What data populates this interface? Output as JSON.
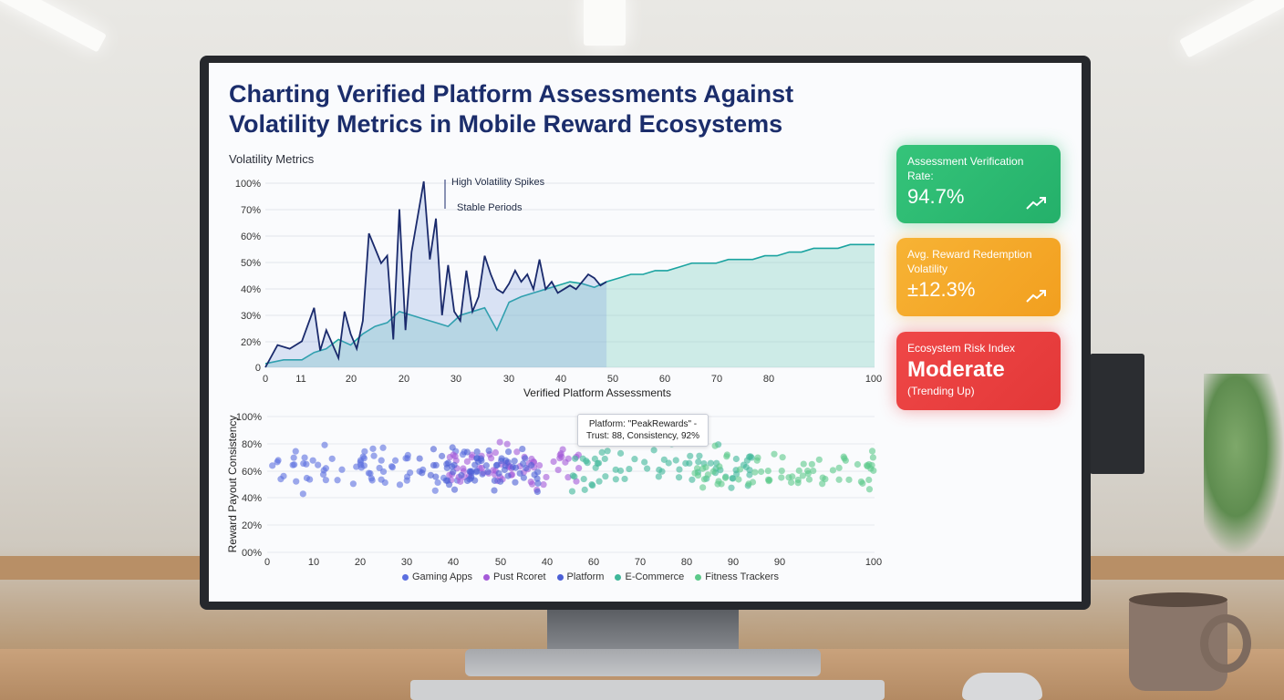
{
  "page": {
    "title": "Charting Verified Platform Assessments Against Volatility Metrics in Mobile Reward Ecosystems"
  },
  "kpis": {
    "verification": {
      "label": "Assessment Verification Rate:",
      "value": "94.7%",
      "icon": "trend-up-icon"
    },
    "redemption": {
      "label": "Avg. Reward Redemption Volatility",
      "value": "±12.3%",
      "icon": "trend-up-icon"
    },
    "risk": {
      "label": "Ecosystem Risk Index",
      "value": "Moderate",
      "sub": "(Trending Up)"
    }
  },
  "colors": {
    "title": "#1b2d6b",
    "spike_line": "#1a2a6c",
    "stable_line": "#1aa3a0",
    "green_card": "#2dbb73",
    "orange_card": "#f4a82a",
    "red_card": "#e84040"
  },
  "tooltip": {
    "line1": "Platform: \"PeakRewards\" -",
    "line2": "Trust: 88, Consistency, 92%"
  },
  "chart_data": [
    {
      "type": "line",
      "title": "Volatility Metrics",
      "xlabel": "Verified Platform Assessments",
      "ylabel": "",
      "x_tick_labels": [
        "0",
        "11",
        "20",
        "20",
        "30",
        "30",
        "40",
        "50",
        "60",
        "70",
        "80",
        "100"
      ],
      "y_tick_labels": [
        "0",
        "20%",
        "30%",
        "40%",
        "50%",
        "60%",
        "70%",
        "100%"
      ],
      "xlim": [
        0,
        100
      ],
      "ylim": [
        0,
        100
      ],
      "annotations": [
        "High Volatility Spikes",
        "Stable Periods"
      ],
      "series": [
        {
          "name": "High Volatility Spikes",
          "x": [
            0,
            2,
            4,
            6,
            8,
            9,
            10,
            12,
            13,
            14,
            15,
            16,
            17,
            19,
            20,
            21,
            22,
            23,
            24,
            26,
            27,
            28,
            29,
            30,
            31,
            32,
            33,
            34,
            35,
            36,
            37,
            38,
            39,
            40,
            41,
            42,
            43,
            44,
            45,
            46,
            47,
            48,
            49,
            50,
            51,
            52,
            53,
            54,
            55,
            56
          ],
          "y": [
            0,
            12,
            10,
            14,
            32,
            9,
            20,
            5,
            30,
            18,
            10,
            25,
            72,
            56,
            60,
            15,
            85,
            20,
            62,
            100,
            58,
            80,
            28,
            55,
            30,
            25,
            52,
            30,
            38,
            60,
            50,
            42,
            40,
            45,
            52,
            46,
            50,
            42,
            58,
            42,
            46,
            40,
            42,
            44,
            42,
            46,
            50,
            48,
            44,
            46
          ]
        },
        {
          "name": "Stable Periods",
          "x": [
            0,
            3,
            6,
            8,
            10,
            12,
            14,
            16,
            18,
            20,
            22,
            24,
            26,
            28,
            30,
            32,
            34,
            36,
            38,
            40,
            42,
            44,
            46,
            48,
            50,
            52,
            54,
            56,
            58,
            60,
            62,
            64,
            66,
            68,
            70,
            72,
            74,
            76,
            78,
            80,
            82,
            84,
            86,
            88,
            90,
            92,
            94,
            96,
            98,
            100
          ],
          "y": [
            2,
            4,
            4,
            8,
            10,
            15,
            12,
            18,
            22,
            24,
            30,
            28,
            26,
            24,
            22,
            28,
            30,
            32,
            20,
            35,
            38,
            40,
            42,
            44,
            46,
            45,
            43,
            46,
            48,
            50,
            50,
            52,
            52,
            54,
            56,
            56,
            56,
            58,
            58,
            58,
            60,
            60,
            62,
            62,
            64,
            64,
            64,
            66,
            66,
            66
          ]
        }
      ]
    },
    {
      "type": "scatter",
      "title": "",
      "xlabel": "",
      "ylabel": "Reward Payout Consistency",
      "x_tick_labels": [
        "0",
        "10",
        "20",
        "30",
        "40",
        "50",
        "40",
        "60",
        "70",
        "80",
        "90",
        "90",
        "100"
      ],
      "y_tick_labels": [
        "00%",
        "20%",
        "40%",
        "60%",
        "80%",
        "100%"
      ],
      "xlim": [
        0,
        100
      ],
      "ylim": [
        0,
        100
      ],
      "legend": [
        "Gaming Apps",
        "Pust Rcoret",
        "Platform",
        "E-Commerce",
        "Fitness Trackers"
      ],
      "legend_colors": [
        "#5b6fe0",
        "#a45ad8",
        "#4b5fd6",
        "#3fb79a",
        "#5cc98a"
      ],
      "cluster_centers": [
        {
          "series": "Gaming Apps",
          "x_range": [
            0,
            35
          ],
          "y_mean": 63
        },
        {
          "series": "Pust Rcoret",
          "x_range": [
            30,
            52
          ],
          "y_mean": 65
        },
        {
          "series": "Platform",
          "x_range": [
            25,
            45
          ],
          "y_mean": 62
        },
        {
          "series": "E-Commerce",
          "x_range": [
            50,
            80
          ],
          "y_mean": 63
        },
        {
          "series": "Fitness Trackers",
          "x_range": [
            70,
            100
          ],
          "y_mean": 62
        }
      ]
    }
  ]
}
